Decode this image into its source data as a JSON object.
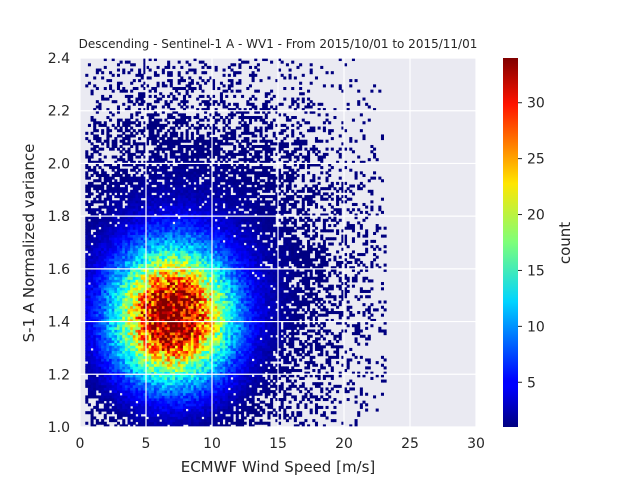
{
  "chart_data": {
    "type": "heatmap",
    "subtype": "2d-histogram",
    "title": "Descending - Sentinel-1 A - WV1 - From 2015/10/01 to 2015/11/01",
    "xlabel": "ECMWF Wind Speed [m/s]",
    "ylabel": "S-1 A Normalized variance",
    "xlim": [
      0,
      30
    ],
    "ylim": [
      1.0,
      2.4
    ],
    "xticks": [
      "0",
      "5",
      "10",
      "15",
      "20",
      "25",
      "30"
    ],
    "yticks": [
      "1.0",
      "1.2",
      "1.4",
      "1.6",
      "1.8",
      "2.0",
      "2.2",
      "2.4"
    ],
    "bins": {
      "x_count": 150,
      "y_count": 140
    },
    "colormap": "jet",
    "colorbar": {
      "label": "count",
      "range": [
        1,
        34
      ],
      "ticks": [
        "5",
        "10",
        "15",
        "20",
        "25",
        "30"
      ]
    },
    "density": {
      "peak": {
        "wind_speed": 7.0,
        "normalized_variance": 1.42,
        "count": 33
      },
      "core": {
        "wind_speed_range": [
          4,
          11
        ],
        "normalized_variance_range": [
          1.25,
          1.6
        ]
      },
      "spread": {
        "wind_speed_range": [
          0.5,
          23
        ],
        "normalized_variance_range": [
          1.0,
          2.4
        ]
      }
    },
    "grid": true,
    "background": "#eaeaf2"
  }
}
